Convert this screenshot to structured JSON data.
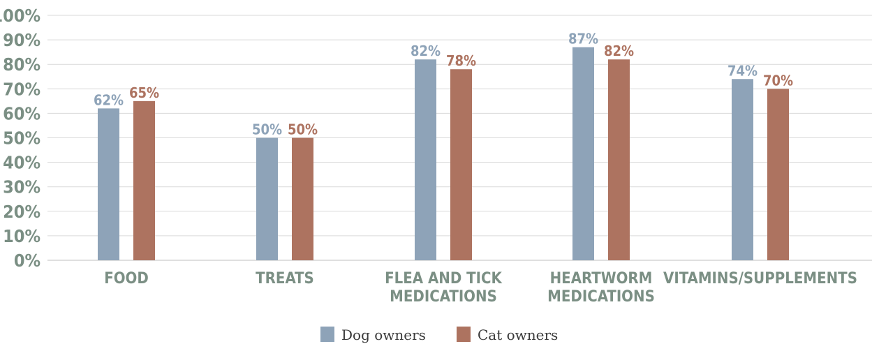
{
  "chart_data": {
    "type": "bar",
    "categories": [
      [
        "FOOD"
      ],
      [
        "TREATS"
      ],
      [
        "FLEA AND TICK",
        "MEDICATIONS"
      ],
      [
        "HEARTWORM",
        "MEDICATIONS"
      ],
      [
        "VITAMINS/SUPPLEMENTS"
      ]
    ],
    "series": [
      {
        "name": "Dog owners",
        "color": "#8ea3b8",
        "label_color": "#8ea3b8",
        "values": [
          62,
          50,
          82,
          87,
          74
        ]
      },
      {
        "name": "Cat owners",
        "color": "#ad7360",
        "label_color": "#ad7360",
        "values": [
          65,
          50,
          78,
          82,
          70
        ]
      }
    ],
    "ylim": [
      0,
      100
    ],
    "yticks": [
      "0%",
      "10%",
      "20%",
      "30%",
      "40%",
      "50%",
      "60%",
      "70%",
      "80%",
      "90%",
      "100%"
    ],
    "value_suffix": "%",
    "grid": true,
    "legend_position": "bottom",
    "colors": {
      "grid": "#d9d9d9",
      "axis_text": "#7b8f84"
    }
  }
}
